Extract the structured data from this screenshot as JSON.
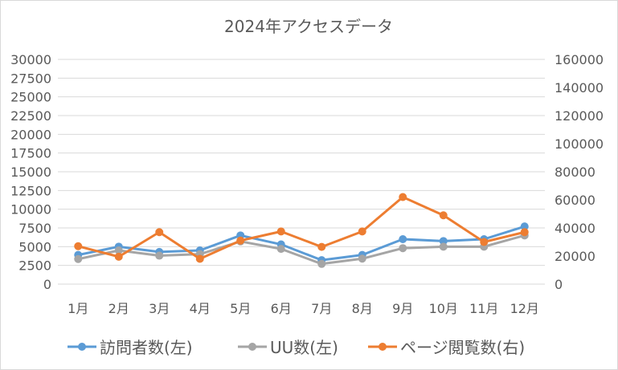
{
  "chart_data": {
    "type": "line",
    "title": "2024年アクセスデータ",
    "categories": [
      "1月",
      "2月",
      "3月",
      "4月",
      "5月",
      "6月",
      "7月",
      "8月",
      "9月",
      "10月",
      "11月",
      "12月"
    ],
    "left_axis": {
      "min": 0,
      "max": 30000,
      "step": 2500,
      "ticks": [
        "0",
        "2500",
        "5000",
        "7500",
        "10000",
        "12500",
        "15000",
        "17500",
        "20000",
        "22500",
        "25000",
        "27500",
        "30000"
      ]
    },
    "right_axis": {
      "min": 0,
      "max": 160000,
      "step": 20000,
      "ticks": [
        "0",
        "20000",
        "40000",
        "60000",
        "80000",
        "100000",
        "120000",
        "140000",
        "160000"
      ]
    },
    "grid": true,
    "legend_position": "bottom",
    "series": [
      {
        "name": "訪問者数(左)",
        "axis": "left",
        "color": "#5b9bd5",
        "values": [
          3900,
          5000,
          4300,
          4500,
          6500,
          5300,
          3200,
          3900,
          6000,
          5750,
          6000,
          7700
        ]
      },
      {
        "name": "UU数(左)",
        "axis": "left",
        "color": "#a5a5a5",
        "values": [
          3350,
          4500,
          3800,
          4000,
          5700,
          4700,
          2700,
          3400,
          4800,
          5000,
          5000,
          6500
        ]
      },
      {
        "name": "ページ閲覧数(右)",
        "axis": "right",
        "color": "#ed7d31",
        "values": [
          27000,
          19500,
          37000,
          18000,
          31000,
          37500,
          26500,
          37500,
          62000,
          49000,
          30000,
          37000
        ]
      }
    ]
  }
}
